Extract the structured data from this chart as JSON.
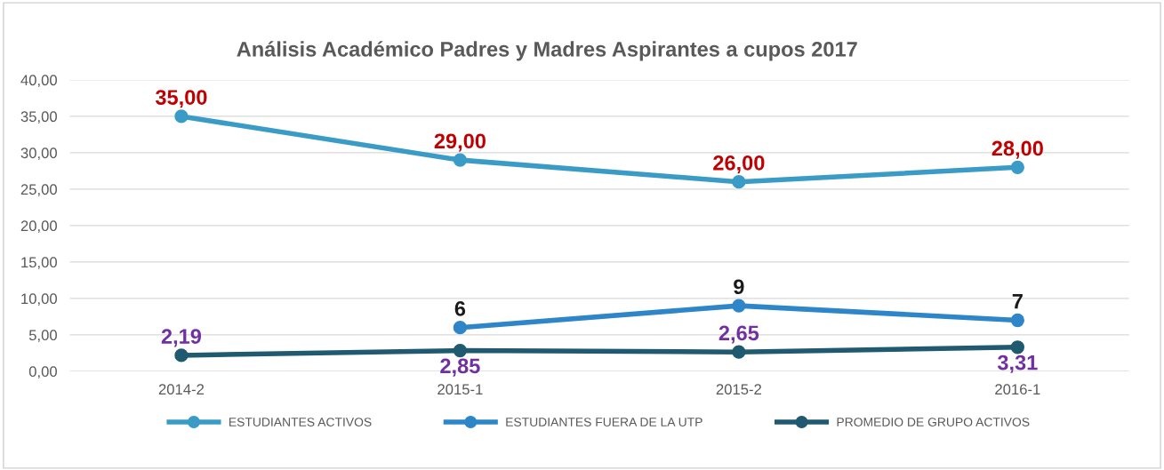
{
  "chart_data": {
    "type": "line",
    "title": "Análisis Académico Padres y Madres Aspirantes a cupos 2017",
    "categories": [
      "2014-2",
      "2015-1",
      "2015-2",
      "2016-1"
    ],
    "series": [
      {
        "name": "ESTUDIANTES ACTIVOS",
        "color": "#3a9cc6",
        "values": [
          35,
          29,
          26,
          28
        ],
        "value_labels": [
          "35,00",
          "29,00",
          "26,00",
          "28,00"
        ]
      },
      {
        "name": "ESTUDIANTES FUERA DE LA UTP",
        "color": "#2e86c8",
        "values": [
          null,
          6,
          9,
          7
        ],
        "value_labels": [
          null,
          "6",
          "9",
          "7"
        ]
      },
      {
        "name": "PROMEDIO DE GRUPO ACTIVOS",
        "color": "#1f5a70",
        "values": [
          2.19,
          2.85,
          2.65,
          3.31
        ],
        "value_labels": [
          "2,19",
          "2,85",
          "2,65",
          "3,31"
        ]
      }
    ],
    "ylim": [
      0,
      40
    ],
    "yticks": [
      {
        "value": 0,
        "label": "0,00"
      },
      {
        "value": 5,
        "label": "5,00"
      },
      {
        "value": 10,
        "label": "10,00"
      },
      {
        "value": 15,
        "label": "15,00"
      },
      {
        "value": 20,
        "label": "20,00"
      },
      {
        "value": 25,
        "label": "25,00"
      },
      {
        "value": 30,
        "label": "30,00"
      },
      {
        "value": 35,
        "label": "35,00"
      },
      {
        "value": 40,
        "label": "40,00"
      }
    ],
    "grid": "y",
    "legend": "bottom",
    "marker": "circle",
    "line_style": "solid"
  }
}
